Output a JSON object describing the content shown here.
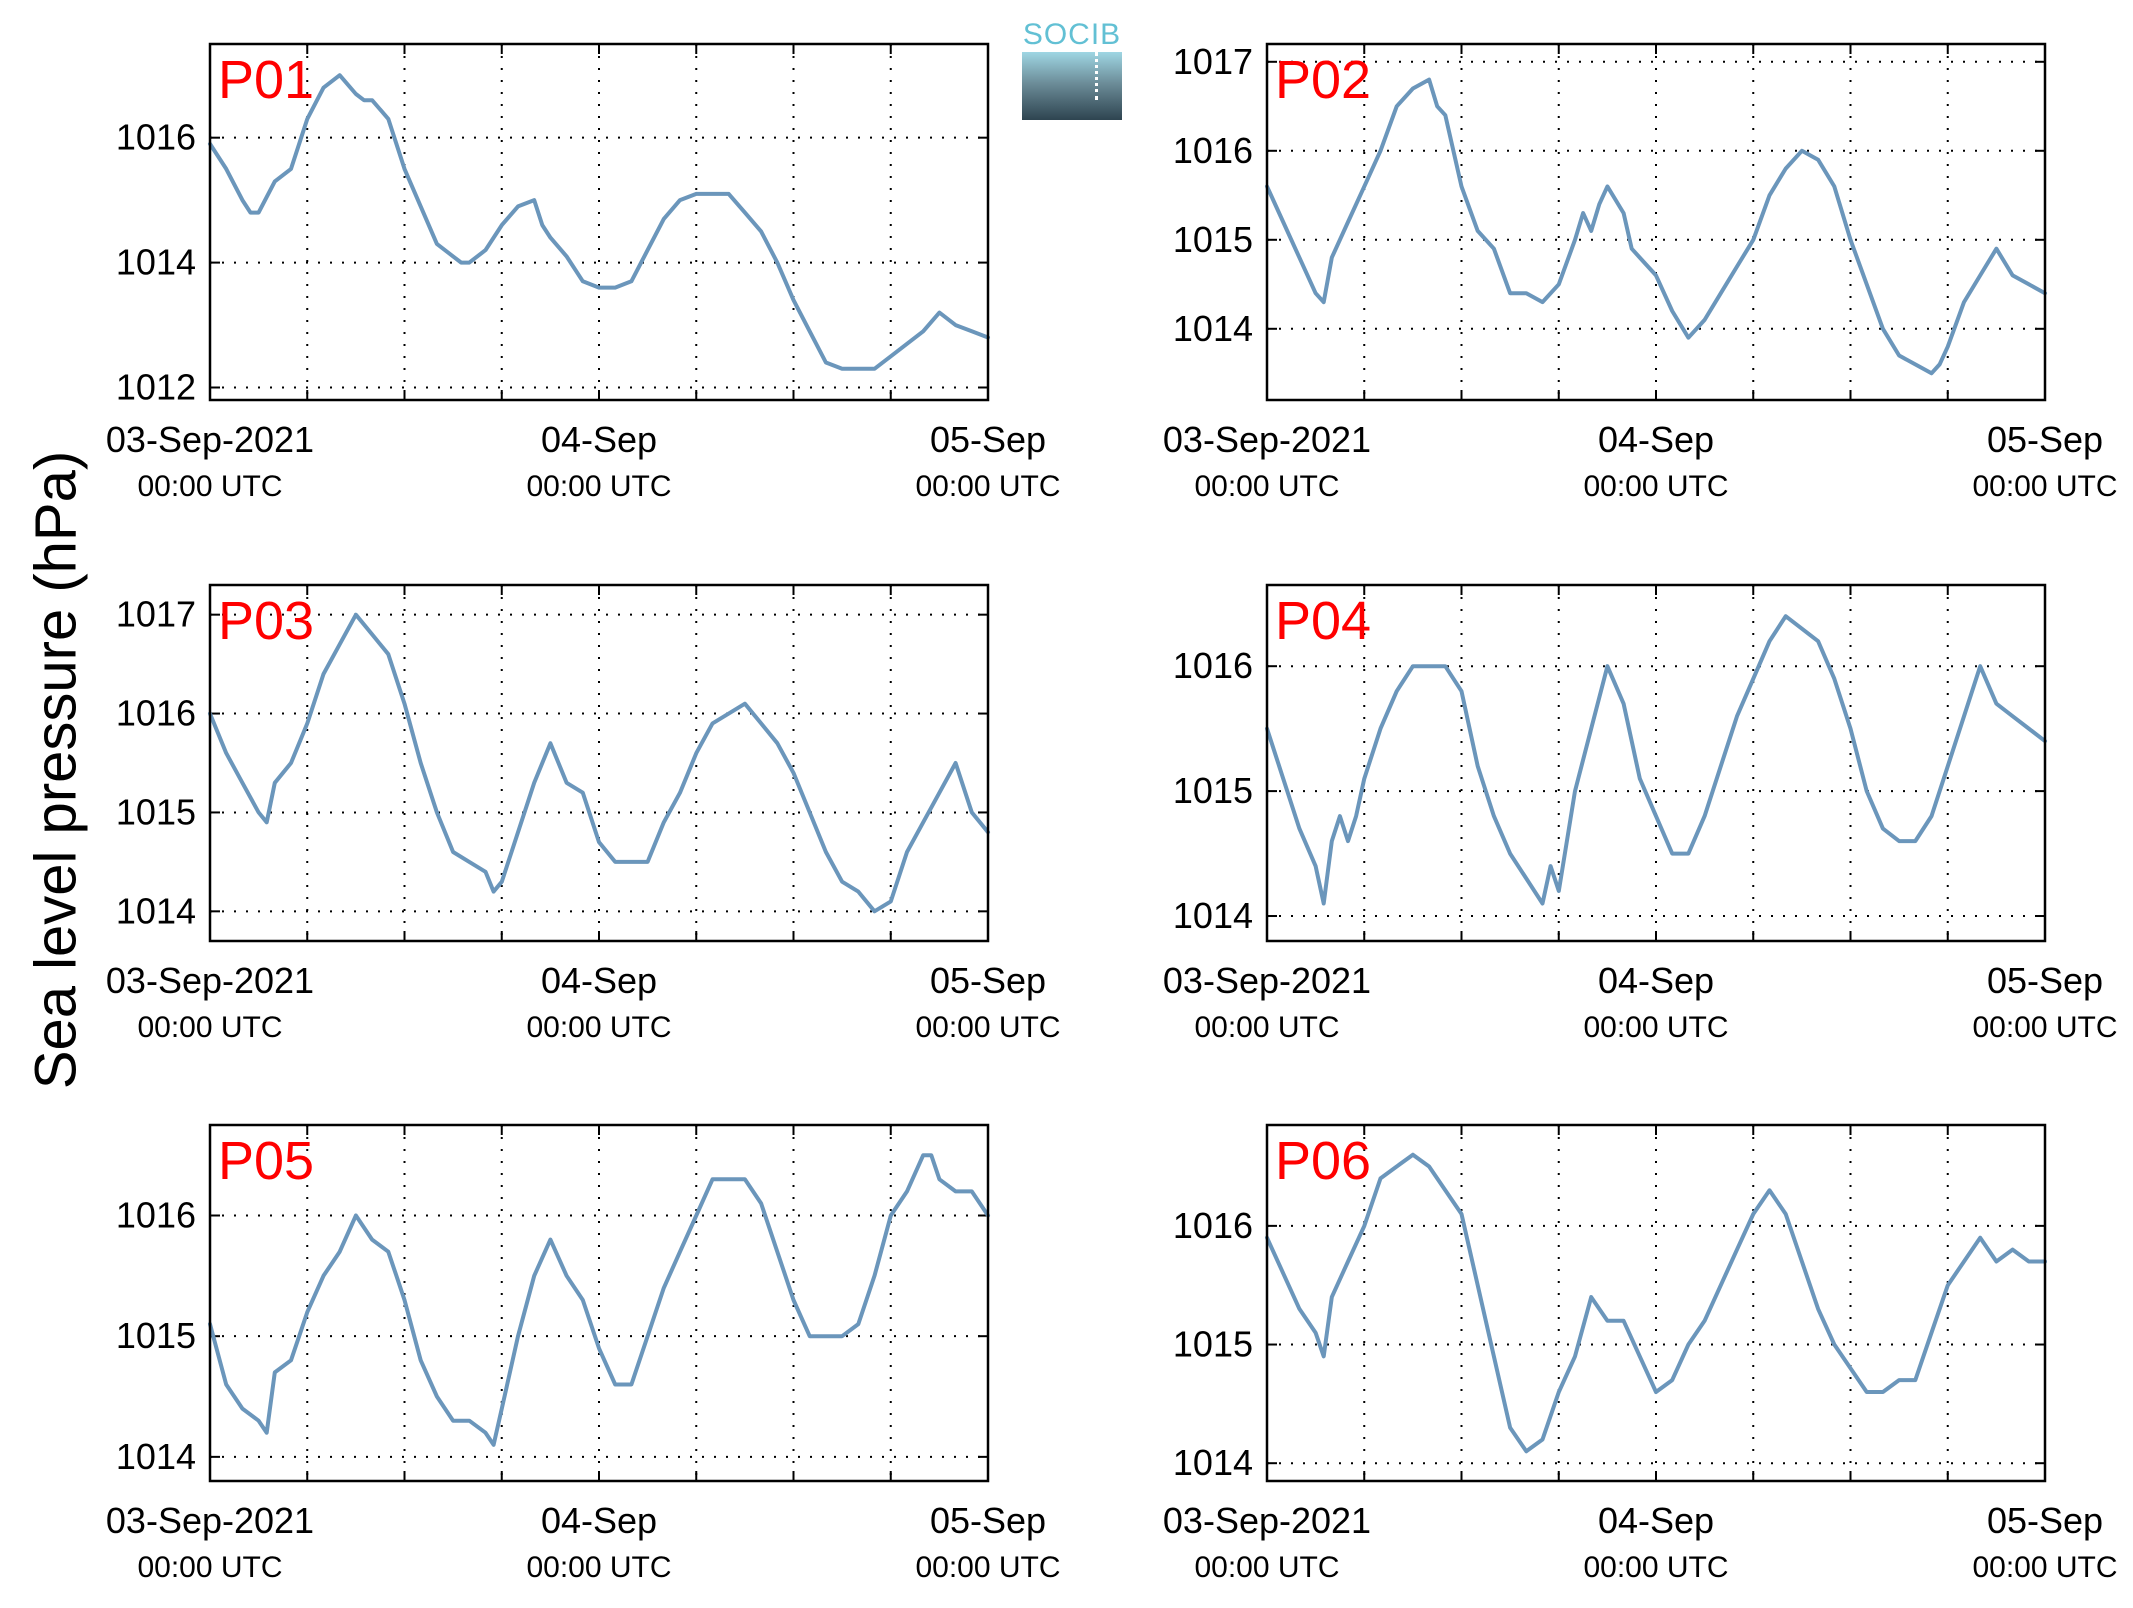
{
  "figure": {
    "ylabel": "Sea level pressure (hPa)",
    "logo_text": "SOCIB",
    "line_color": "#6b96bb",
    "panel_label_color": "#ff0000"
  },
  "chart_data": [
    {
      "type": "line",
      "panel": "P01",
      "xlim": [
        0,
        48
      ],
      "ylim": [
        1011.8,
        1017.5
      ],
      "yticks": [
        1012,
        1014,
        1016
      ],
      "xticks": [
        0,
        24,
        48
      ],
      "xticklabels": [
        "03-Sep-2021",
        "04-Sep",
        "05-Sep"
      ],
      "xsublabels": [
        "00:00 UTC",
        "00:00 UTC",
        "00:00 UTC"
      ],
      "x_units": "hours since 03-Sep-2021 00:00 UTC",
      "grid": true,
      "x": [
        0,
        1,
        2,
        2.5,
        3,
        4,
        5,
        6,
        7,
        8,
        9,
        9.5,
        10,
        11,
        12,
        13,
        14,
        15,
        15.5,
        16,
        17,
        18,
        19,
        20,
        20.5,
        21,
        22,
        23,
        24,
        25,
        26,
        27,
        28,
        29,
        30,
        31,
        32,
        33,
        34,
        35,
        36,
        37,
        38,
        39,
        40,
        41,
        42,
        43,
        44,
        45,
        46,
        47,
        48
      ],
      "y": [
        1015.9,
        1015.5,
        1015.0,
        1014.8,
        1014.8,
        1015.3,
        1015.5,
        1016.3,
        1016.8,
        1017.0,
        1016.7,
        1016.6,
        1016.6,
        1016.3,
        1015.5,
        1014.9,
        1014.3,
        1014.1,
        1014.0,
        1014.0,
        1014.2,
        1014.6,
        1014.9,
        1015.0,
        1014.6,
        1014.4,
        1014.1,
        1013.7,
        1013.6,
        1013.6,
        1013.7,
        1014.2,
        1014.7,
        1015.0,
        1015.1,
        1015.1,
        1015.1,
        1014.8,
        1014.5,
        1014.0,
        1013.4,
        1012.9,
        1012.4,
        1012.3,
        1012.3,
        1012.3,
        1012.5,
        1012.7,
        1012.9,
        1013.2,
        1013.0,
        1012.9,
        1012.8
      ]
    },
    {
      "type": "line",
      "panel": "P02",
      "xlim": [
        0,
        48
      ],
      "ylim": [
        1013.2,
        1017.2
      ],
      "yticks": [
        1014,
        1015,
        1016,
        1017
      ],
      "xticks": [
        0,
        24,
        48
      ],
      "xticklabels": [
        "03-Sep-2021",
        "04-Sep",
        "05-Sep"
      ],
      "xsublabels": [
        "00:00 UTC",
        "00:00 UTC",
        "00:00 UTC"
      ],
      "x_units": "hours since 03-Sep-2021 00:00 UTC",
      "grid": true,
      "x": [
        0,
        1,
        2,
        3,
        3.5,
        4,
        5,
        6,
        7,
        8,
        9,
        10,
        10.5,
        11,
        12,
        13,
        14,
        15,
        16,
        17,
        18,
        19,
        19.5,
        20,
        20.5,
        21,
        22,
        22.5,
        23,
        24,
        25,
        26,
        26.5,
        27,
        28,
        29,
        30,
        31,
        32,
        33,
        34,
        35,
        36,
        37,
        38,
        39,
        40,
        41,
        41.5,
        42,
        43,
        44,
        45,
        46,
        47,
        48
      ],
      "y": [
        1015.6,
        1015.2,
        1014.8,
        1014.4,
        1014.3,
        1014.8,
        1015.2,
        1015.6,
        1016.0,
        1016.5,
        1016.7,
        1016.8,
        1016.5,
        1016.4,
        1015.6,
        1015.1,
        1014.9,
        1014.4,
        1014.4,
        1014.3,
        1014.5,
        1015.0,
        1015.3,
        1015.1,
        1015.4,
        1015.6,
        1015.3,
        1014.9,
        1014.8,
        1014.6,
        1014.2,
        1013.9,
        1014.0,
        1014.1,
        1014.4,
        1014.7,
        1015.0,
        1015.5,
        1015.8,
        1016.0,
        1015.9,
        1015.6,
        1015.0,
        1014.5,
        1014.0,
        1013.7,
        1013.6,
        1013.5,
        1013.6,
        1013.8,
        1014.3,
        1014.6,
        1014.9,
        1014.6,
        1014.5,
        1014.4
      ]
    },
    {
      "type": "line",
      "panel": "P03",
      "xlim": [
        0,
        48
      ],
      "ylim": [
        1013.7,
        1017.3
      ],
      "yticks": [
        1014,
        1015,
        1016,
        1017
      ],
      "xticks": [
        0,
        24,
        48
      ],
      "xticklabels": [
        "03-Sep-2021",
        "04-Sep",
        "05-Sep"
      ],
      "xsublabels": [
        "00:00 UTC",
        "00:00 UTC",
        "00:00 UTC"
      ],
      "x_units": "hours since 03-Sep-2021 00:00 UTC",
      "grid": true,
      "x": [
        0,
        1,
        2,
        3,
        3.5,
        4,
        5,
        6,
        7,
        8,
        9,
        10,
        11,
        12,
        13,
        14,
        15,
        16,
        17,
        17.5,
        18,
        19,
        20,
        21,
        21.5,
        22,
        23,
        24,
        25,
        26,
        27,
        28,
        29,
        30,
        31,
        32,
        33,
        34,
        35,
        36,
        37,
        38,
        39,
        40,
        41,
        42,
        43,
        44,
        45,
        46,
        47,
        48
      ],
      "y": [
        1016.0,
        1015.6,
        1015.3,
        1015.0,
        1014.9,
        1015.3,
        1015.5,
        1015.9,
        1016.4,
        1016.7,
        1017.0,
        1016.8,
        1016.6,
        1016.1,
        1015.5,
        1015.0,
        1014.6,
        1014.5,
        1014.4,
        1014.2,
        1014.3,
        1014.8,
        1015.3,
        1015.7,
        1015.5,
        1015.3,
        1015.2,
        1014.7,
        1014.5,
        1014.5,
        1014.5,
        1014.9,
        1015.2,
        1015.6,
        1015.9,
        1016.0,
        1016.1,
        1015.9,
        1015.7,
        1015.4,
        1015.0,
        1014.6,
        1014.3,
        1014.2,
        1014.0,
        1014.1,
        1014.6,
        1014.9,
        1015.2,
        1015.5,
        1015.0,
        1014.8
      ]
    },
    {
      "type": "line",
      "panel": "P04",
      "xlim": [
        0,
        48
      ],
      "ylim": [
        1013.8,
        1016.65
      ],
      "yticks": [
        1014,
        1015,
        1016
      ],
      "xticks": [
        0,
        24,
        48
      ],
      "xticklabels": [
        "03-Sep-2021",
        "04-Sep",
        "05-Sep"
      ],
      "xsublabels": [
        "00:00 UTC",
        "00:00 UTC",
        "00:00 UTC"
      ],
      "x_units": "hours since 03-Sep-2021 00:00 UTC",
      "grid": true,
      "x": [
        0,
        1,
        2,
        3,
        3.5,
        4,
        4.5,
        5,
        5.5,
        6,
        7,
        8,
        9,
        10,
        11,
        12,
        13,
        14,
        15,
        16,
        17,
        17.5,
        18,
        18.5,
        19,
        20,
        21,
        22,
        22.5,
        23,
        24,
        25,
        26,
        27,
        28,
        29,
        30,
        31,
        32,
        33,
        34,
        35,
        36,
        37,
        38,
        39,
        40,
        41,
        42,
        43,
        44,
        45,
        46,
        47,
        48
      ],
      "y": [
        1015.5,
        1015.1,
        1014.7,
        1014.4,
        1014.1,
        1014.6,
        1014.8,
        1014.6,
        1014.8,
        1015.1,
        1015.5,
        1015.8,
        1016.0,
        1016.0,
        1016.0,
        1015.8,
        1015.2,
        1014.8,
        1014.5,
        1014.3,
        1014.1,
        1014.4,
        1014.2,
        1014.6,
        1015.0,
        1015.5,
        1016.0,
        1015.7,
        1015.4,
        1015.1,
        1014.8,
        1014.5,
        1014.5,
        1014.8,
        1015.2,
        1015.6,
        1015.9,
        1016.2,
        1016.4,
        1016.3,
        1016.2,
        1015.9,
        1015.5,
        1015.0,
        1014.7,
        1014.6,
        1014.6,
        1014.8,
        1015.2,
        1015.6,
        1016.0,
        1015.7,
        1015.6,
        1015.5,
        1015.4
      ]
    },
    {
      "type": "line",
      "panel": "P05",
      "xlim": [
        0,
        48
      ],
      "ylim": [
        1013.8,
        1016.75
      ],
      "yticks": [
        1014,
        1015,
        1016
      ],
      "xticks": [
        0,
        24,
        48
      ],
      "xticklabels": [
        "03-Sep-2021",
        "04-Sep",
        "05-Sep"
      ],
      "xsublabels": [
        "00:00 UTC",
        "00:00 UTC",
        "00:00 UTC"
      ],
      "x_units": "hours since 03-Sep-2021 00:00 UTC",
      "grid": true,
      "x": [
        0,
        1,
        2,
        3,
        3.5,
        4,
        5,
        6,
        7,
        8,
        9,
        10,
        11,
        11.5,
        12,
        13,
        14,
        15,
        16,
        17,
        17.5,
        18,
        19,
        20,
        21,
        22,
        23,
        24,
        25,
        26,
        27,
        28,
        29,
        30,
        31,
        32,
        33,
        34,
        35,
        36,
        37,
        38,
        39,
        40,
        41,
        42,
        43,
        44,
        44.5,
        45,
        46,
        47,
        48
      ],
      "y": [
        1015.1,
        1014.6,
        1014.4,
        1014.3,
        1014.2,
        1014.7,
        1014.8,
        1015.2,
        1015.5,
        1015.7,
        1016.0,
        1015.8,
        1015.7,
        1015.5,
        1015.3,
        1014.8,
        1014.5,
        1014.3,
        1014.3,
        1014.2,
        1014.1,
        1014.4,
        1015.0,
        1015.5,
        1015.8,
        1015.5,
        1015.3,
        1014.9,
        1014.6,
        1014.6,
        1015.0,
        1015.4,
        1015.7,
        1016.0,
        1016.3,
        1016.3,
        1016.3,
        1016.1,
        1015.7,
        1015.3,
        1015.0,
        1015.0,
        1015.0,
        1015.1,
        1015.5,
        1016.0,
        1016.2,
        1016.5,
        1016.5,
        1016.3,
        1016.2,
        1016.2,
        1016.0
      ]
    },
    {
      "type": "line",
      "panel": "P06",
      "xlim": [
        0,
        48
      ],
      "ylim": [
        1013.85,
        1016.85
      ],
      "yticks": [
        1014,
        1015,
        1016
      ],
      "xticks": [
        0,
        24,
        48
      ],
      "xticklabels": [
        "03-Sep-2021",
        "04-Sep",
        "05-Sep"
      ],
      "xsublabels": [
        "00:00 UTC",
        "00:00 UTC",
        "00:00 UTC"
      ],
      "x_units": "hours since 03-Sep-2021 00:00 UTC",
      "grid": true,
      "x": [
        0,
        1,
        2,
        3,
        3.5,
        4,
        5,
        6,
        7,
        8,
        9,
        10,
        11,
        12,
        13,
        14,
        15,
        16,
        17,
        18,
        19,
        20,
        21,
        22,
        23,
        24,
        25,
        26,
        27,
        28,
        29,
        30,
        31,
        32,
        33,
        34,
        35,
        36,
        37,
        38,
        39,
        40,
        41,
        42,
        43,
        44,
        45,
        46,
        47,
        48
      ],
      "y": [
        1015.9,
        1015.6,
        1015.3,
        1015.1,
        1014.9,
        1015.4,
        1015.7,
        1016.0,
        1016.4,
        1016.5,
        1016.6,
        1016.5,
        1016.3,
        1016.1,
        1015.5,
        1014.9,
        1014.3,
        1014.1,
        1014.2,
        1014.6,
        1014.9,
        1015.4,
        1015.2,
        1015.2,
        1014.9,
        1014.6,
        1014.7,
        1015.0,
        1015.2,
        1015.5,
        1015.8,
        1016.1,
        1016.3,
        1016.1,
        1015.7,
        1015.3,
        1015.0,
        1014.8,
        1014.6,
        1014.6,
        1014.7,
        1014.7,
        1015.1,
        1015.5,
        1015.7,
        1015.9,
        1015.7,
        1015.8,
        1015.7,
        1015.7
      ]
    }
  ]
}
